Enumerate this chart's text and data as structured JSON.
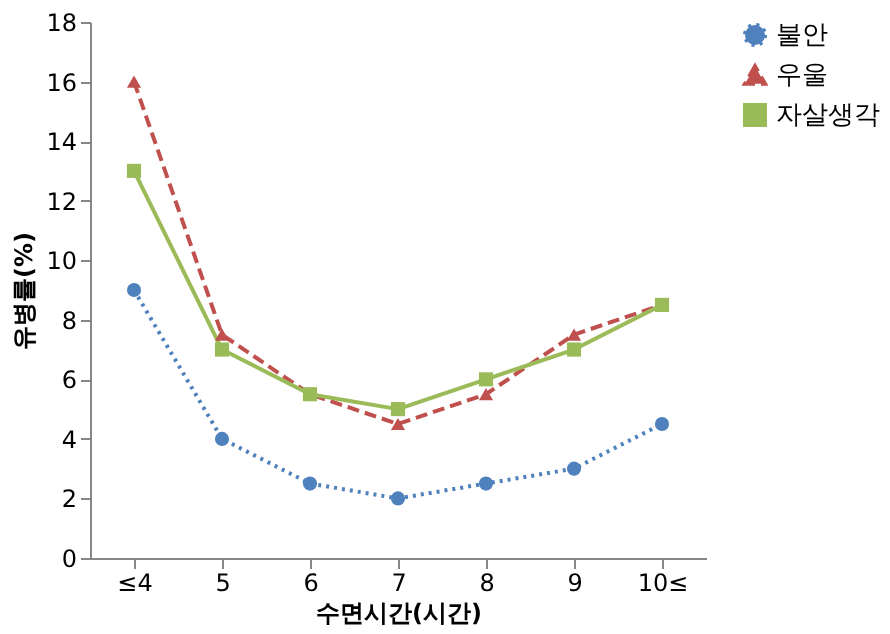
{
  "chart_data": {
    "type": "line",
    "xlabel": "수면시간(시간)",
    "ylabel": "유병률(%)",
    "categories": [
      "≤4",
      "5",
      "6",
      "7",
      "8",
      "9",
      "10≤"
    ],
    "series": [
      {
        "name": "불안",
        "color": "#4f81bd",
        "marker": "circle",
        "line_style": "dotted",
        "values": [
          9,
          4,
          2.5,
          2,
          2.5,
          3,
          4.5
        ]
      },
      {
        "name": "우울",
        "color": "#c0504d",
        "marker": "triangle",
        "line_style": "dashed",
        "values": [
          16,
          7.5,
          5.5,
          4.5,
          5.5,
          7.5,
          8.5
        ]
      },
      {
        "name": "자살생각",
        "color": "#9bbb59",
        "marker": "square",
        "line_style": "solid",
        "values": [
          13,
          7,
          5.5,
          5,
          6,
          7,
          8.5
        ]
      }
    ],
    "ylim": [
      0,
      18
    ],
    "yticks": [
      0,
      2,
      4,
      6,
      8,
      10,
      12,
      14,
      16,
      18
    ],
    "grid": false,
    "legend": "top right"
  }
}
